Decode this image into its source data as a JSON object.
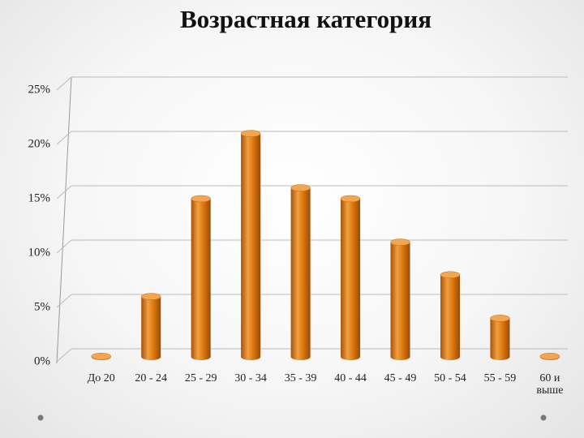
{
  "chart_data": {
    "type": "bar",
    "title": "Возрастная категория",
    "categories": [
      "До 20",
      "20 - 24",
      "25 - 29",
      "30 - 34",
      "35 - 39",
      "40 - 44",
      "45 - 49",
      "50 - 54",
      "55 - 59",
      "60 и выше"
    ],
    "values": [
      0.5,
      6,
      15,
      21,
      16,
      15,
      11,
      8,
      4,
      0.5
    ],
    "color": "#e07b10",
    "ylim": [
      0,
      25
    ],
    "yticks": [
      {
        "value": 0,
        "label": "0%"
      },
      {
        "value": 5,
        "label": "5%"
      },
      {
        "value": 10,
        "label": "10%"
      },
      {
        "value": 15,
        "label": "15%"
      },
      {
        "value": 20,
        "label": "20%"
      },
      {
        "value": 25,
        "label": "25%"
      }
    ],
    "grid": true
  }
}
